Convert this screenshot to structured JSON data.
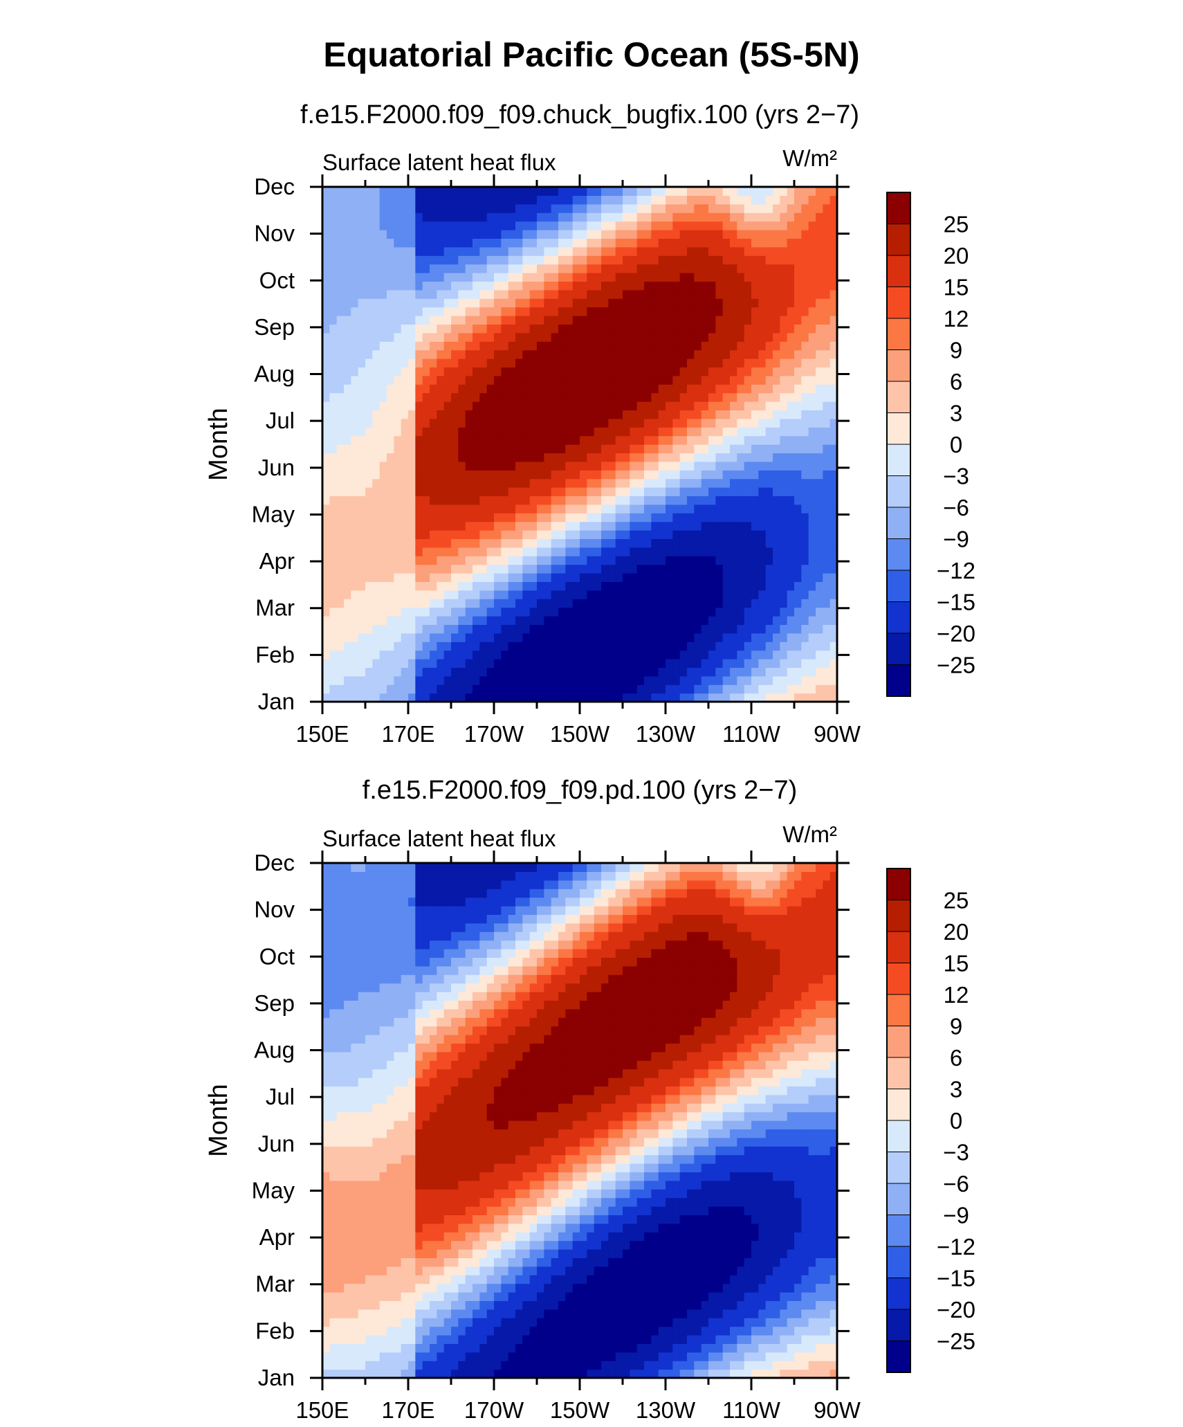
{
  "figure": {
    "title": "Equatorial Pacific Ocean (5S-5N)"
  },
  "chart_data": [
    {
      "type": "heatmap",
      "title": "f.e15.F2000.f09_f09.chuck_bugfix.100 (yrs 2−7)",
      "subtitle": "Surface latent heat flux",
      "units": "W/m²",
      "xlabel": "",
      "ylabel": "Month",
      "x_tick_labels": [
        "150E",
        "170E",
        "170W",
        "150W",
        "130W",
        "110W",
        "90W"
      ],
      "y_tick_labels": [
        "Jan",
        "Feb",
        "Mar",
        "Apr",
        "May",
        "Jun",
        "Jul",
        "Aug",
        "Sep",
        "Oct",
        "Nov",
        "Dec"
      ],
      "x_range_deg_east": [
        150,
        270
      ],
      "y_range_month": [
        1,
        12
      ],
      "colorbar_levels": [
        "25",
        "20",
        "15",
        "12",
        "9",
        "6",
        "3",
        "0",
        "−3",
        "−6",
        "−9",
        "−12",
        "−15",
        "−20",
        "−25"
      ],
      "colorbar_colors": [
        "#8b0000",
        "#b51e00",
        "#d93010",
        "#f54b23",
        "#fb7744",
        "#fc9f7b",
        "#fdc4a9",
        "#fee8d8",
        "#d8e9fc",
        "#b4cdfa",
        "#8fb0f5",
        "#5d8af0",
        "#2f5fe6",
        "#1233cf",
        "#0719a8",
        "#00008b"
      ],
      "legend_position": "right",
      "grid": false
    },
    {
      "type": "heatmap",
      "title": "f.e15.F2000.f09_f09.pd.100 (yrs 2−7)",
      "subtitle": "Surface latent heat flux",
      "units": "W/m²",
      "xlabel": "",
      "ylabel": "Month",
      "x_tick_labels": [
        "150E",
        "170E",
        "170W",
        "150W",
        "130W",
        "110W",
        "90W"
      ],
      "y_tick_labels": [
        "Jan",
        "Feb",
        "Mar",
        "Apr",
        "May",
        "Jun",
        "Jul",
        "Aug",
        "Sep",
        "Oct",
        "Nov",
        "Dec"
      ],
      "x_range_deg_east": [
        150,
        270
      ],
      "y_range_month": [
        1,
        12
      ],
      "colorbar_levels": [
        "25",
        "20",
        "15",
        "12",
        "9",
        "6",
        "3",
        "0",
        "−3",
        "−6",
        "−9",
        "−12",
        "−15",
        "−20",
        "−25"
      ],
      "colorbar_colors": [
        "#8b0000",
        "#b51e00",
        "#d93010",
        "#f54b23",
        "#fb7744",
        "#fc9f7b",
        "#fdc4a9",
        "#fee8d8",
        "#d8e9fc",
        "#b4cdfa",
        "#8fb0f5",
        "#5d8af0",
        "#2f5fe6",
        "#1233cf",
        "#0719a8",
        "#00008b"
      ],
      "legend_position": "right",
      "grid": false
    }
  ]
}
